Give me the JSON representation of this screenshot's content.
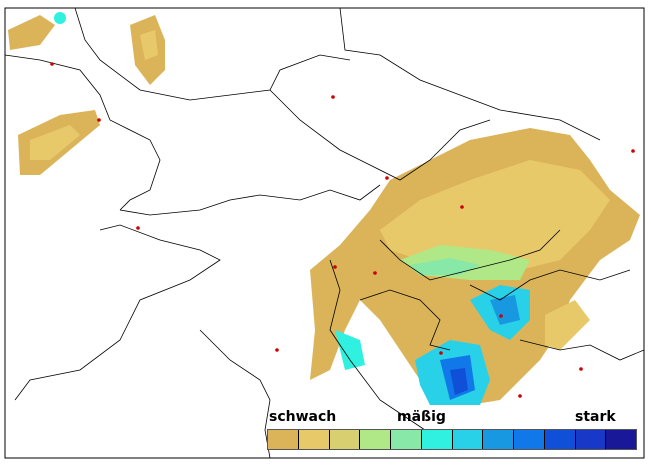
{
  "legend": {
    "label_low": "schwach",
    "label_mid": "mäßig",
    "label_high": "stark",
    "colors": [
      "#dbb45a",
      "#e8c96a",
      "#d8d070",
      "#b0e888",
      "#88e8a8",
      "#30f0e0",
      "#28d0e8",
      "#1898e0",
      "#1078e8",
      "#1050d8",
      "#1838c8",
      "#181898"
    ]
  },
  "map": {
    "city_marker_color": "#cc0000",
    "border_color": "#000000"
  }
}
